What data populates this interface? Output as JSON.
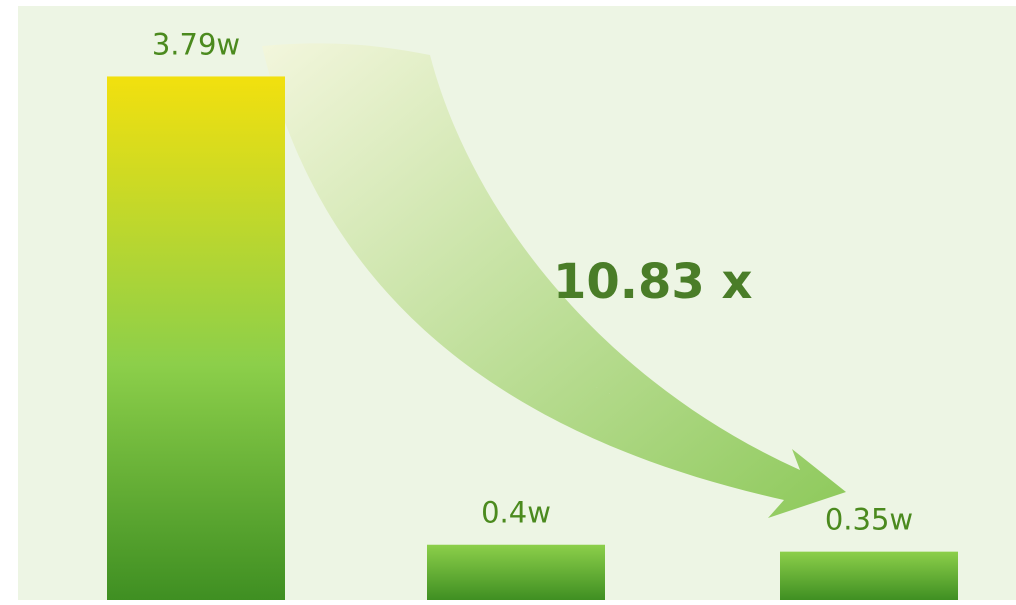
{
  "chart_data": {
    "type": "bar",
    "categories": [
      "",
      "",
      ""
    ],
    "values": [
      3.79,
      0.4,
      0.35
    ],
    "value_labels": [
      "3.79w",
      "0.4w",
      "0.35w"
    ],
    "ratio_label": "10.83 x",
    "ylim": [
      0,
      4.3
    ],
    "grid": false,
    "legend": "none"
  },
  "colors": {
    "background": "#edf5e4",
    "bar_top_yellow": "#f2e00e",
    "bar_mid_green": "#8ccf4a",
    "bar_dark_green": "#3f8f22",
    "label_text": "#4b8a1e",
    "ratio_text": "#4a7d28",
    "arrow_light": "#f3f6dc",
    "arrow_dark": "#8dc95a"
  }
}
